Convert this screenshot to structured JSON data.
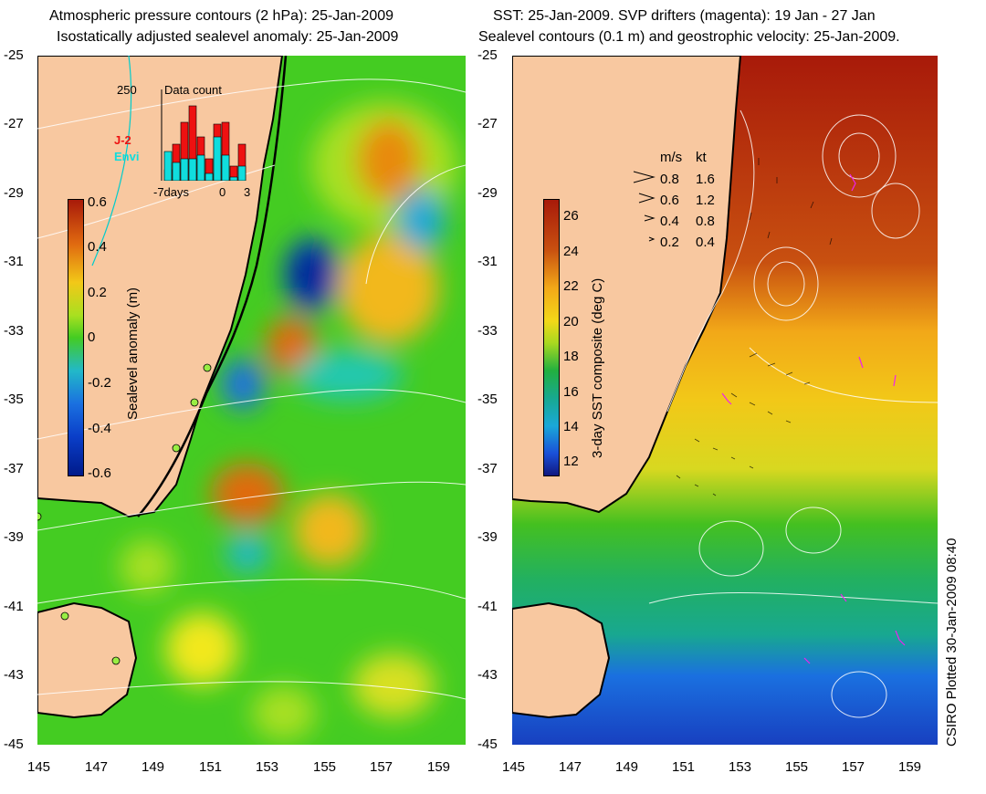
{
  "left_panel": {
    "title_line1": "Atmospheric pressure contours (2 hPa): 25-Jan-2009",
    "title_line2": "Isostatically adjusted sealevel anomaly: 25-Jan-2009",
    "colorbar_title": "Sealevel anomaly (m)",
    "colorbar_ticks": [
      "0.6",
      "0.4",
      "0.2",
      "0",
      "-0.2",
      "-0.4",
      "-0.6"
    ],
    "inset": {
      "title": "Data count",
      "ymax_label": "250",
      "legend_j2": "J-2",
      "legend_envi": "Envi",
      "x_labels": [
        "-7days",
        "0",
        "3"
      ],
      "j2_color": "#ee1111",
      "envi_color": "#11dddd",
      "bars_j2": [
        30,
        100,
        160,
        205,
        120,
        60,
        155,
        160,
        40,
        100
      ],
      "bars_envi": [
        80,
        50,
        60,
        60,
        70,
        20,
        120,
        70,
        10,
        40
      ]
    }
  },
  "right_panel": {
    "title_line1": "SST: 25-Jan-2009. SVP drifters (magenta): 19 Jan - 27 Jan",
    "title_line2": "Sealevel contours (0.1 m) and geostrophic velocity: 25-Jan-2009.",
    "colorbar_title": "3-day SST composite (deg C)",
    "colorbar_ticks": [
      "26",
      "24",
      "22",
      "20",
      "18",
      "16",
      "14",
      "12"
    ],
    "velocity_key": {
      "header_ms": "m/s",
      "header_kt": "kt",
      "rows": [
        {
          "ms": "0.8",
          "kt": "1.6"
        },
        {
          "ms": "0.6",
          "kt": "1.2"
        },
        {
          "ms": "0.4",
          "kt": "0.8"
        },
        {
          "ms": "0.2",
          "kt": "0.4"
        }
      ]
    }
  },
  "axes": {
    "lat_labels": [
      "-25",
      "-27",
      "-29",
      "-31",
      "-33",
      "-35",
      "-37",
      "-39",
      "-41",
      "-43",
      "-45"
    ],
    "lon_labels": [
      "145",
      "147",
      "149",
      "151",
      "153",
      "155",
      "157",
      "159"
    ]
  },
  "credit": "CSIRO Plotted 30-Jan-2009 08:40",
  "colors": {
    "land": "#f8c8a0",
    "coast": "#000000",
    "contour": "#ffffff"
  }
}
